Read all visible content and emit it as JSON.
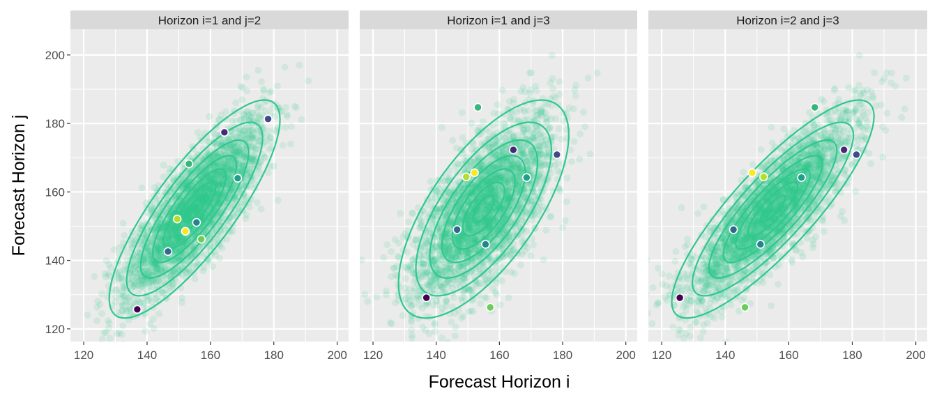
{
  "chart_data": {
    "type": "scatter",
    "xlabel": "Forecast Horizon i",
    "ylabel": "Forecast Horizon j",
    "xlim": [
      115.8,
      203.6
    ],
    "ylim": [
      116.3,
      207.5
    ],
    "x_ticks": [
      120,
      140,
      160,
      180,
      200
    ],
    "y_ticks": [
      120,
      140,
      160,
      180,
      200
    ],
    "grid": true,
    "panels": [
      {
        "title": "Horizon i=1 and j=2",
        "i": 0,
        "j": 1
      },
      {
        "title": "Horizon i=1 and j=3",
        "i": 0,
        "j": 2
      },
      {
        "title": "Horizon i=2 and j=3",
        "i": 1,
        "j": 2
      }
    ],
    "sample_cloud": {
      "color": "#2EC88E",
      "n": 3000,
      "mean": [
        155,
        155,
        155
      ],
      "sd": [
        11,
        13,
        13
      ],
      "correlation": [
        [
          1,
          0.82,
          0.68
        ],
        [
          0.82,
          1,
          0.85
        ],
        [
          0.68,
          0.85,
          1
        ]
      ],
      "contour_color": "#2EC88E"
    },
    "highlighted_series": [
      {
        "color": "#440154",
        "horizons": [
          136.9,
          125.7,
          129.1
        ]
      },
      {
        "color": "#482878",
        "horizons": [
          164.4,
          177.4,
          172.3
        ]
      },
      {
        "color": "#3E4A89",
        "horizons": [
          178.2,
          181.3,
          170.9
        ]
      },
      {
        "color": "#31688E",
        "horizons": [
          146.6,
          142.6,
          149.0
        ]
      },
      {
        "color": "#26828E",
        "horizons": [
          155.6,
          151.1,
          144.7
        ]
      },
      {
        "color": "#1F9E89",
        "horizons": [
          168.6,
          164.0,
          164.2
        ]
      },
      {
        "color": "#35B779",
        "horizons": [
          153.2,
          168.2,
          184.7
        ]
      },
      {
        "color": "#6DCD59",
        "horizons": [
          157.1,
          146.2,
          126.3
        ]
      },
      {
        "color": "#B4DE2C",
        "horizons": [
          149.5,
          152.1,
          164.4
        ]
      },
      {
        "color": "#FDE725",
        "horizons": [
          152.1,
          148.5,
          165.6
        ]
      }
    ]
  }
}
